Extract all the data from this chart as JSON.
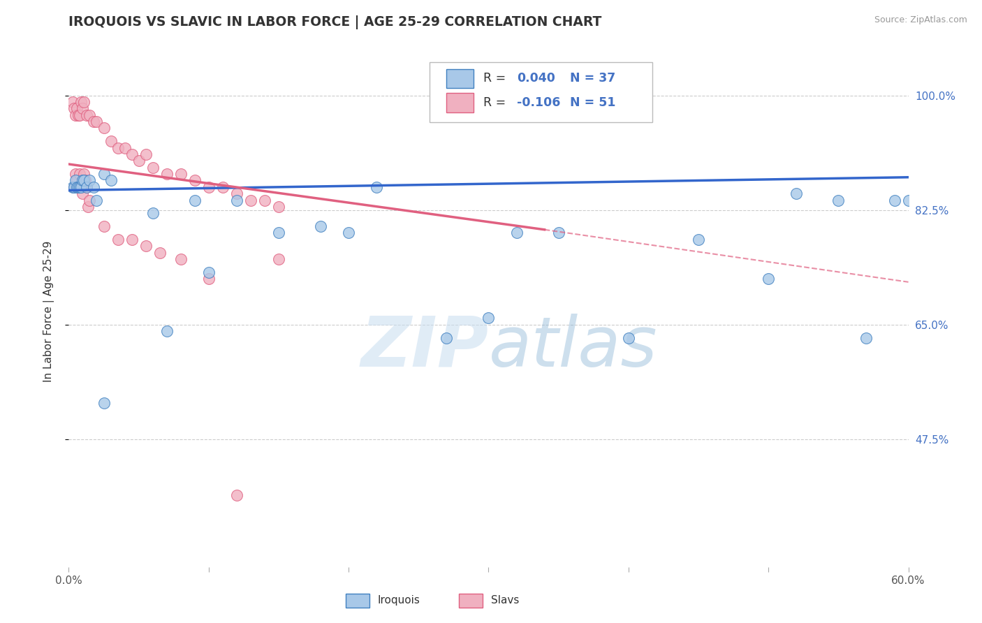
{
  "title": "IROQUOIS VS SLAVIC IN LABOR FORCE | AGE 25-29 CORRELATION CHART",
  "source_text": "Source: ZipAtlas.com",
  "ylabel": "In Labor Force | Age 25-29",
  "xmin": 0.0,
  "xmax": 0.6,
  "ymin": 0.28,
  "ymax": 1.06,
  "yticks": [
    0.475,
    0.65,
    0.825,
    1.0
  ],
  "ytick_labels": [
    "47.5%",
    "65.0%",
    "82.5%",
    "100.0%"
  ],
  "watermark_zip": "ZIP",
  "watermark_atlas": "atlas",
  "R_iroquois": 0.04,
  "N_iroquois": 37,
  "R_slavs": -0.106,
  "N_slavs": 51,
  "iroquois_fill": "#a8c8e8",
  "iroquois_edge": "#4080c0",
  "slavs_fill": "#f0b0c0",
  "slavs_edge": "#e06080",
  "blue_line_color": "#3366cc",
  "pink_line_color": "#e06080",
  "grid_color": "#cccccc",
  "bg_color": "#ffffff",
  "irq_line_x0": 0.0,
  "irq_line_y0": 0.855,
  "irq_line_x1": 0.6,
  "irq_line_y1": 0.875,
  "slv_line_x0": 0.0,
  "slv_line_y0": 0.895,
  "slv_line_solid_x1": 0.34,
  "slv_line_solid_y1": 0.795,
  "slv_line_dash_x1": 0.6,
  "slv_line_dash_y1": 0.715,
  "iroquois_x": [
    0.003,
    0.004,
    0.005,
    0.006,
    0.007,
    0.008,
    0.009,
    0.01,
    0.011,
    0.013,
    0.015,
    0.018,
    0.02,
    0.025,
    0.03,
    0.06,
    0.09,
    0.12,
    0.15,
    0.18,
    0.2,
    0.22,
    0.27,
    0.3,
    0.32,
    0.35,
    0.4,
    0.45,
    0.5,
    0.52,
    0.55,
    0.57,
    0.59,
    0.6,
    0.025,
    0.07,
    0.1
  ],
  "iroquois_y": [
    0.86,
    0.86,
    0.87,
    0.86,
    0.86,
    0.86,
    0.86,
    0.87,
    0.87,
    0.86,
    0.87,
    0.86,
    0.84,
    0.88,
    0.87,
    0.82,
    0.84,
    0.84,
    0.79,
    0.8,
    0.79,
    0.86,
    0.63,
    0.66,
    0.79,
    0.79,
    0.63,
    0.78,
    0.72,
    0.85,
    0.84,
    0.63,
    0.84,
    0.84,
    0.53,
    0.64,
    0.73
  ],
  "slavs_x": [
    0.003,
    0.004,
    0.005,
    0.006,
    0.007,
    0.008,
    0.009,
    0.01,
    0.011,
    0.013,
    0.015,
    0.018,
    0.02,
    0.025,
    0.03,
    0.035,
    0.04,
    0.045,
    0.05,
    0.055,
    0.06,
    0.07,
    0.08,
    0.09,
    0.1,
    0.11,
    0.12,
    0.13,
    0.14,
    0.15,
    0.004,
    0.005,
    0.006,
    0.007,
    0.008,
    0.009,
    0.01,
    0.011,
    0.012,
    0.013,
    0.014,
    0.015,
    0.025,
    0.035,
    0.045,
    0.055,
    0.065,
    0.08,
    0.1,
    0.15,
    0.12
  ],
  "slavs_y": [
    0.99,
    0.98,
    0.97,
    0.98,
    0.97,
    0.97,
    0.99,
    0.98,
    0.99,
    0.97,
    0.97,
    0.96,
    0.96,
    0.95,
    0.93,
    0.92,
    0.92,
    0.91,
    0.9,
    0.91,
    0.89,
    0.88,
    0.88,
    0.87,
    0.86,
    0.86,
    0.85,
    0.84,
    0.84,
    0.83,
    0.86,
    0.88,
    0.87,
    0.86,
    0.88,
    0.86,
    0.85,
    0.88,
    0.87,
    0.86,
    0.83,
    0.84,
    0.8,
    0.78,
    0.78,
    0.77,
    0.76,
    0.75,
    0.72,
    0.75,
    0.39
  ]
}
